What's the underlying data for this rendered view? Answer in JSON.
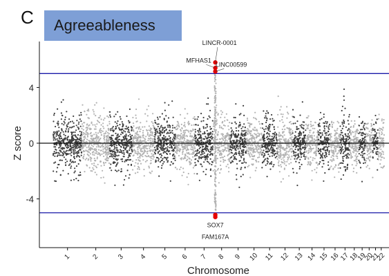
{
  "panel_label": "C",
  "colors": {
    "dark": "#3f3f3f",
    "light": "#b3b3b3",
    "threshold": "#1a1aa8",
    "hit": "#e60000",
    "title_bg": "#7e9fd6"
  },
  "chart_data": {
    "type": "scatter",
    "title": "Agreeableness",
    "xlabel": "Chromosome",
    "ylabel": "Z score",
    "ylim": [
      -7.5,
      7.3
    ],
    "yticks": [
      4,
      0,
      -4
    ],
    "threshold_lines": [
      5,
      -5
    ],
    "zero_line": 0,
    "chromosomes": [
      {
        "label": "1",
        "spread": 3.9
      },
      {
        "label": "2",
        "spread": 3.6
      },
      {
        "label": "3",
        "spread": 3.9
      },
      {
        "label": "4",
        "spread": 3.4
      },
      {
        "label": "5",
        "spread": 3.5
      },
      {
        "label": "6",
        "spread": 3.6
      },
      {
        "label": "7",
        "spread": 3.7
      },
      {
        "label": "8",
        "spread": 3.8
      },
      {
        "label": "9",
        "spread": 3.3
      },
      {
        "label": "10",
        "spread": 3.4
      },
      {
        "label": "11",
        "spread": 3.5
      },
      {
        "label": "12",
        "spread": 3.7
      },
      {
        "label": "13",
        "spread": 3.2
      },
      {
        "label": "14",
        "spread": 3.4
      },
      {
        "label": "15",
        "spread": 3.6
      },
      {
        "label": "16",
        "spread": 3.6
      },
      {
        "label": "17",
        "spread": 4.4
      },
      {
        "label": "18",
        "spread": 3.3
      },
      {
        "label": "19",
        "spread": 3.3
      },
      {
        "label": "20",
        "spread": 3.0
      },
      {
        "label": "21",
        "spread": 2.8
      },
      {
        "label": "22",
        "spread": 3.4
      }
    ],
    "hits": [
      {
        "label": "LINCR-0001",
        "z": 5.8
      },
      {
        "label": "MFHAS1",
        "z": 5.4
      },
      {
        "label": "LINC00599",
        "z": 5.15
      },
      {
        "label": "SOX7",
        "z": -5.15
      },
      {
        "label": "FAM167A",
        "z": -5.3
      }
    ]
  }
}
